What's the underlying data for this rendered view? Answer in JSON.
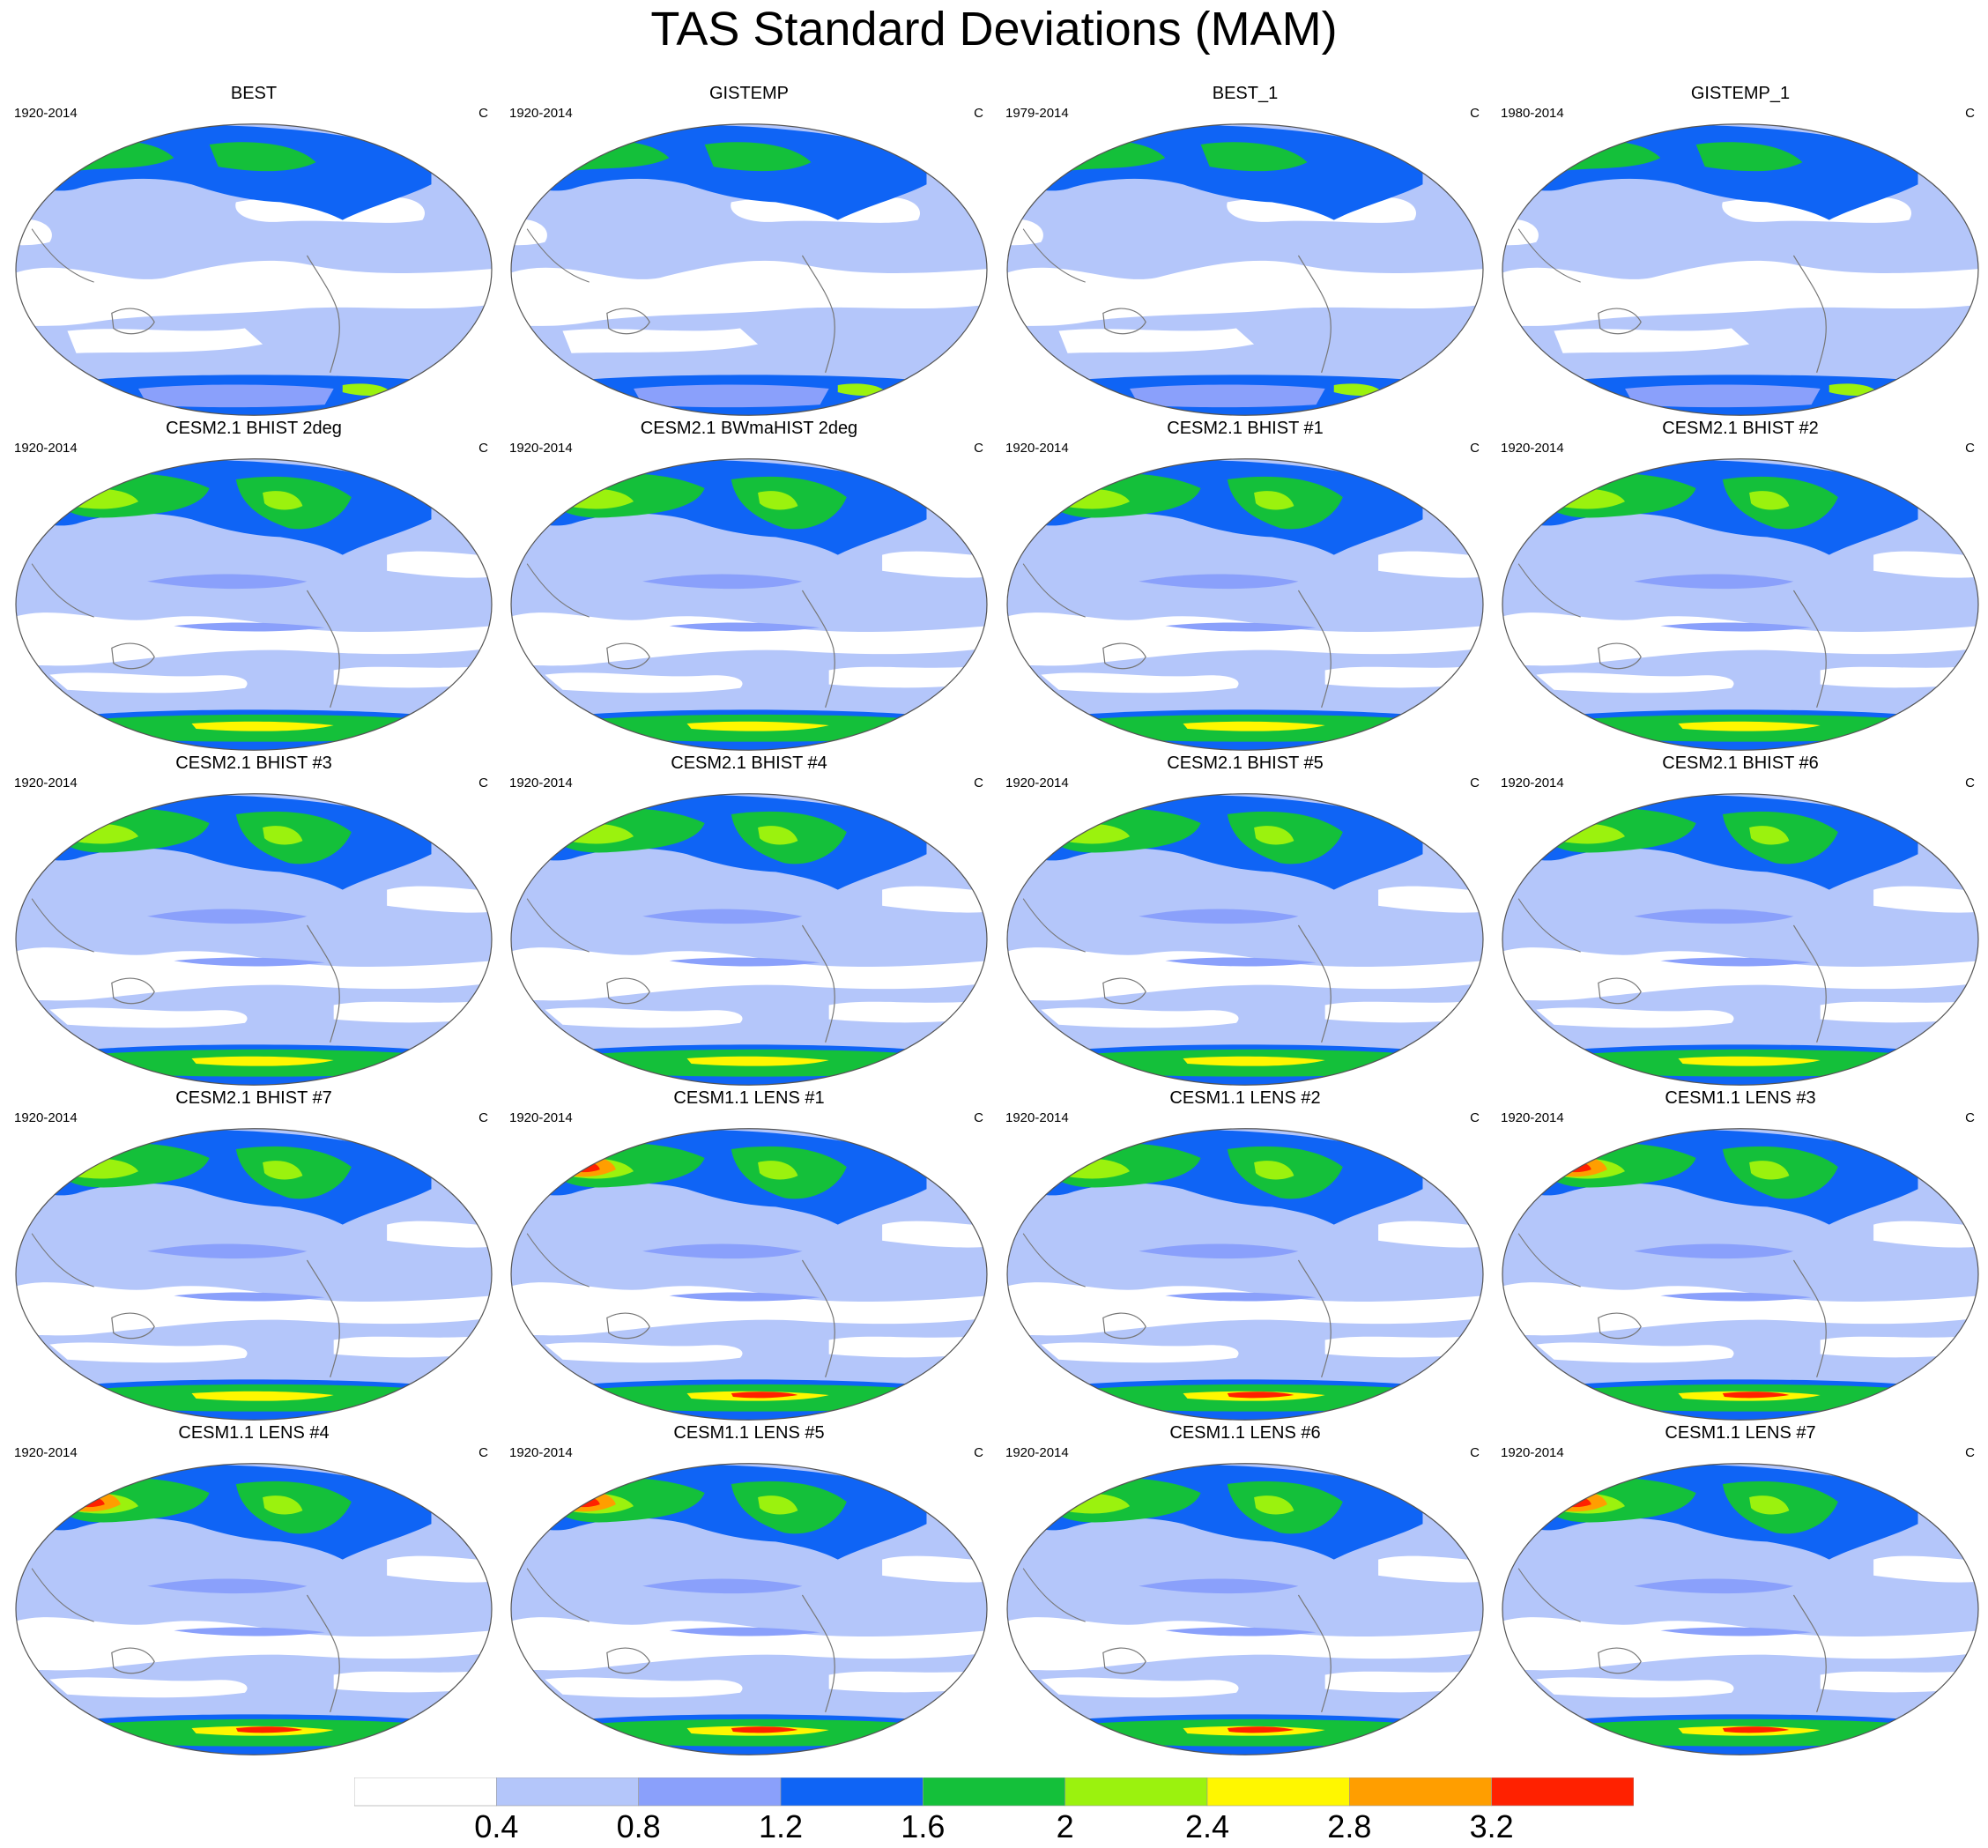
{
  "title": "TAS Standard Deviations (MAM)",
  "units": "C",
  "panels": [
    {
      "title": "BEST",
      "period": "1920-2014",
      "variant": "obs",
      "hot": 0
    },
    {
      "title": "GISTEMP",
      "period": "1920-2014",
      "variant": "obs",
      "hot": 0
    },
    {
      "title": "BEST_1",
      "period": "1979-2014",
      "variant": "obs",
      "hot": 0
    },
    {
      "title": "GISTEMP_1",
      "period": "1980-2014",
      "variant": "obs",
      "hot": 0
    },
    {
      "title": "CESM2.1 BHIST 2deg",
      "period": "1920-2014",
      "variant": "cesm2",
      "hot": 0
    },
    {
      "title": "CESM2.1 BWmaHIST 2deg",
      "period": "1920-2014",
      "variant": "cesm2",
      "hot": 0
    },
    {
      "title": "CESM2.1 BHIST #1",
      "period": "1920-2014",
      "variant": "cesm2",
      "hot": 0
    },
    {
      "title": "CESM2.1 BHIST #2",
      "period": "1920-2014",
      "variant": "cesm2",
      "hot": 0
    },
    {
      "title": "CESM2.1 BHIST #3",
      "period": "1920-2014",
      "variant": "cesm2",
      "hot": 0
    },
    {
      "title": "CESM2.1 BHIST #4",
      "period": "1920-2014",
      "variant": "cesm2",
      "hot": 0
    },
    {
      "title": "CESM2.1 BHIST #5",
      "period": "1920-2014",
      "variant": "cesm2",
      "hot": 0
    },
    {
      "title": "CESM2.1 BHIST #6",
      "period": "1920-2014",
      "variant": "cesm2",
      "hot": 0
    },
    {
      "title": "CESM2.1 BHIST #7",
      "period": "1920-2014",
      "variant": "cesm2",
      "hot": 0
    },
    {
      "title": "CESM1.1 LENS #1",
      "period": "1920-2014",
      "variant": "lens",
      "hot": 1
    },
    {
      "title": "CESM1.1 LENS #2",
      "period": "1920-2014",
      "variant": "lens",
      "hot": 0
    },
    {
      "title": "CESM1.1 LENS #3",
      "period": "1920-2014",
      "variant": "lens",
      "hot": 1
    },
    {
      "title": "CESM1.1 LENS #4",
      "period": "1920-2014",
      "variant": "lens",
      "hot": 1
    },
    {
      "title": "CESM1.1 LENS #5",
      "period": "1920-2014",
      "variant": "lens",
      "hot": 1
    },
    {
      "title": "CESM1.1 LENS #6",
      "period": "1920-2014",
      "variant": "lens",
      "hot": 0
    },
    {
      "title": "CESM1.1 LENS #7",
      "period": "1920-2014",
      "variant": "lens",
      "hot": 1
    }
  ],
  "colorbar": {
    "levels": [
      "0.4",
      "0.8",
      "1.2",
      "1.6",
      "2",
      "2.4",
      "2.8",
      "3.2"
    ],
    "colors": [
      "#ffffff",
      "#b4c6fa",
      "#8aa0fb",
      "#0f64f5",
      "#14c03a",
      "#9bf20e",
      "#fff700",
      "#ff9e00",
      "#ff2100"
    ]
  }
}
